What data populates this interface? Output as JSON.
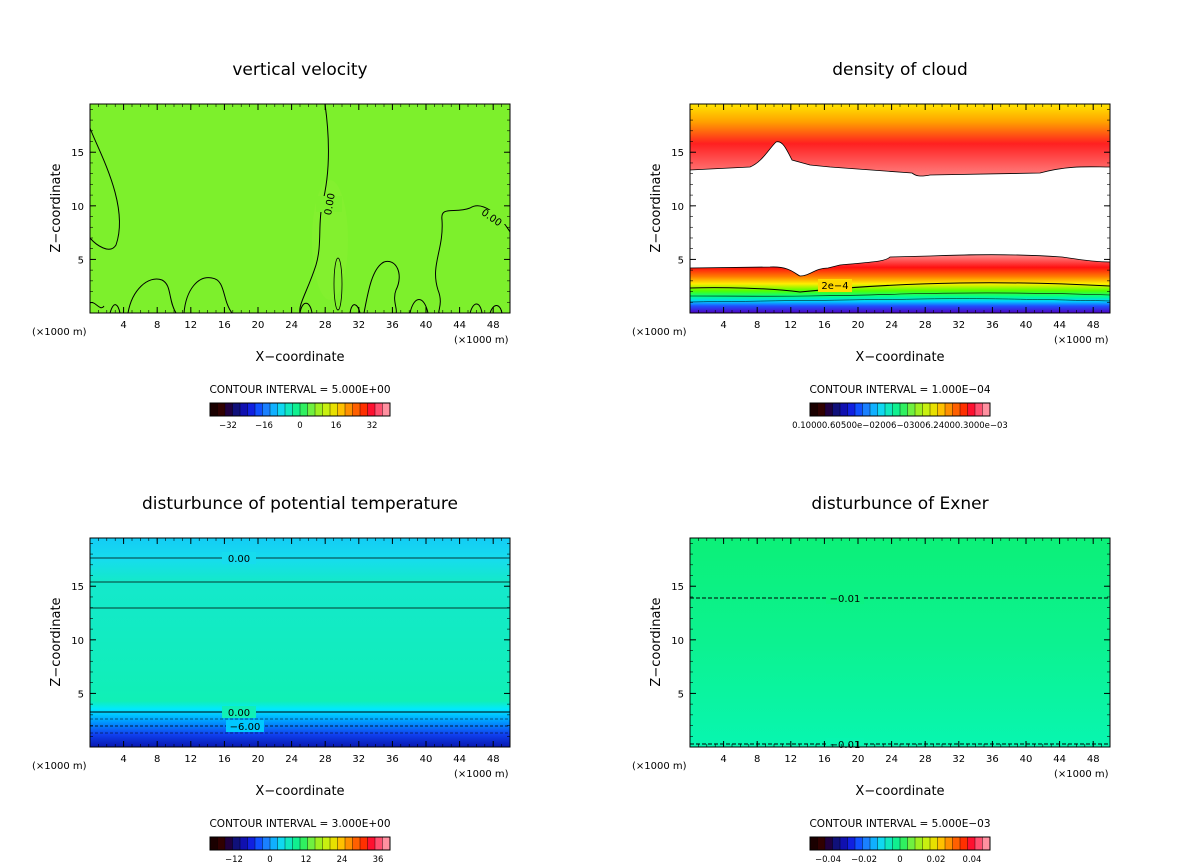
{
  "chart_data": [
    {
      "type": "heatmap",
      "title": "vertical velocity",
      "xlabel": "X−coordinate",
      "ylabel": "Z−coordinate",
      "x_unit": "(×1000 m)",
      "xticks": [
        "4",
        "8",
        "12",
        "16",
        "20",
        "24",
        "28",
        "32",
        "36",
        "40",
        "44",
        "48"
      ],
      "yticks": [
        "5",
        "10",
        "15"
      ],
      "xlim": [
        0,
        50
      ],
      "ylim": [
        0,
        19.5
      ],
      "contour_interval": "CONTOUR INTERVAL = 5.000E+00",
      "contour_labels": [
        "0.00",
        "0.00"
      ],
      "colorbar_labels": [
        "−32",
        "−16",
        "0",
        "16",
        "32"
      ],
      "field_color": "#7df02c"
    },
    {
      "type": "heatmap",
      "title": "density of cloud",
      "xlabel": "X−coordinate",
      "ylabel": "Z−coordinate",
      "x_unit": "(×1000 m)",
      "xticks": [
        "4",
        "8",
        "12",
        "16",
        "20",
        "24",
        "28",
        "32",
        "36",
        "40",
        "44",
        "48"
      ],
      "yticks": [
        "5",
        "10",
        "15"
      ],
      "xlim": [
        0,
        50
      ],
      "ylim": [
        0,
        19.5
      ],
      "contour_interval": "CONTOUR INTERVAL = 1.000E−04",
      "contour_labels": [
        "2e−4"
      ],
      "colorbar_labels": [
        "0.10000.60500e−02006−03006.24000.3000e−03"
      ]
    },
    {
      "type": "heatmap",
      "title": "disturbunce of potential temperature",
      "xlabel": "X−coordinate",
      "ylabel": "Z−coordinate",
      "x_unit": "(×1000 m)",
      "xticks": [
        "4",
        "8",
        "12",
        "16",
        "20",
        "24",
        "28",
        "32",
        "36",
        "40",
        "44",
        "48"
      ],
      "yticks": [
        "5",
        "10",
        "15"
      ],
      "xlim": [
        0,
        50
      ],
      "ylim": [
        0,
        19.5
      ],
      "contour_interval": "CONTOUR INTERVAL = 3.000E+00",
      "contour_labels": [
        "0.00",
        "0.00",
        "−6.00"
      ],
      "colorbar_labels": [
        "−12",
        "0",
        "12",
        "24",
        "36"
      ]
    },
    {
      "type": "heatmap",
      "title": "disturbunce of Exner",
      "xlabel": "X−coordinate",
      "ylabel": "Z−coordinate",
      "x_unit": "(×1000 m)",
      "xticks": [
        "4",
        "8",
        "12",
        "16",
        "20",
        "24",
        "28",
        "32",
        "36",
        "40",
        "44",
        "48"
      ],
      "yticks": [
        "5",
        "10",
        "15"
      ],
      "xlim": [
        0,
        50
      ],
      "ylim": [
        0,
        19.5
      ],
      "contour_interval": "CONTOUR INTERVAL = 5.000E−03",
      "contour_labels": [
        "−0.01",
        "−0.01"
      ],
      "colorbar_labels": [
        "−0.04",
        "−0.02",
        "0",
        "0.02",
        "0.04"
      ],
      "field_color": "#0ff58a"
    }
  ]
}
